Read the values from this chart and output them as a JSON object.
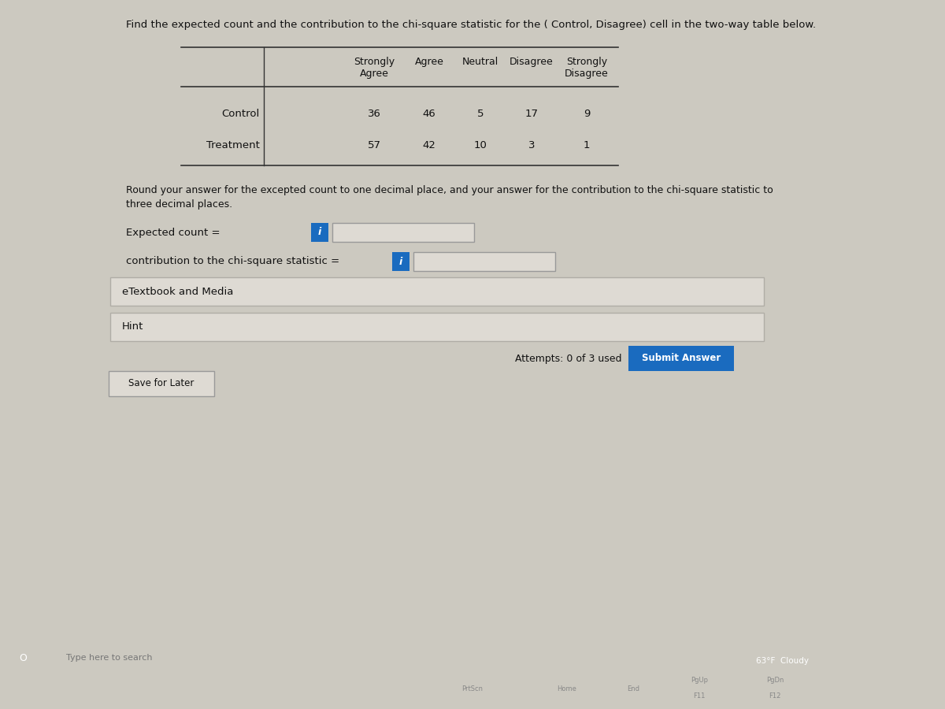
{
  "title": "Find the expected count and the contribution to the chi-square statistic for the ( Control, Disagree) cell in the two-way table below.",
  "col_headers_line1": [
    "Strongly",
    "Agree",
    "Neutral",
    "Disagree",
    "Strongly"
  ],
  "col_headers_line2": [
    "Agree",
    "",
    "",
    "",
    "Disagree"
  ],
  "row_labels": [
    "Control",
    "Treatment"
  ],
  "table_data": [
    [
      36,
      46,
      5,
      17,
      9
    ],
    [
      57,
      42,
      10,
      3,
      1
    ]
  ],
  "round_text1": "Round your answer for the excepted count to one decimal place, and your answer for the contribution to the chi-square statistic to",
  "round_text2": "three decimal places.",
  "expected_label": "Expected count =",
  "contrib_label": "contribution to the chi-square statistic =",
  "etextbook_label": "eTextbook and Media",
  "hint_label": "Hint",
  "attempts_text": "Attempts: 0 of 3 used",
  "submit_text": "Submit Answer",
  "save_text": "Save for Later",
  "bg_color": "#ccc9c0",
  "content_bg": "#e2dfd8",
  "white_bg": "#f0ede6",
  "input_bg": "#dedad3",
  "submit_btn_color": "#1a6bbf",
  "info_btn_color": "#1a6bbf",
  "taskbar_color": "#1c1c1c",
  "line_color": "#333333",
  "text_color": "#111111",
  "section_border": "#b0ada6",
  "section_bg": "#dedad3"
}
